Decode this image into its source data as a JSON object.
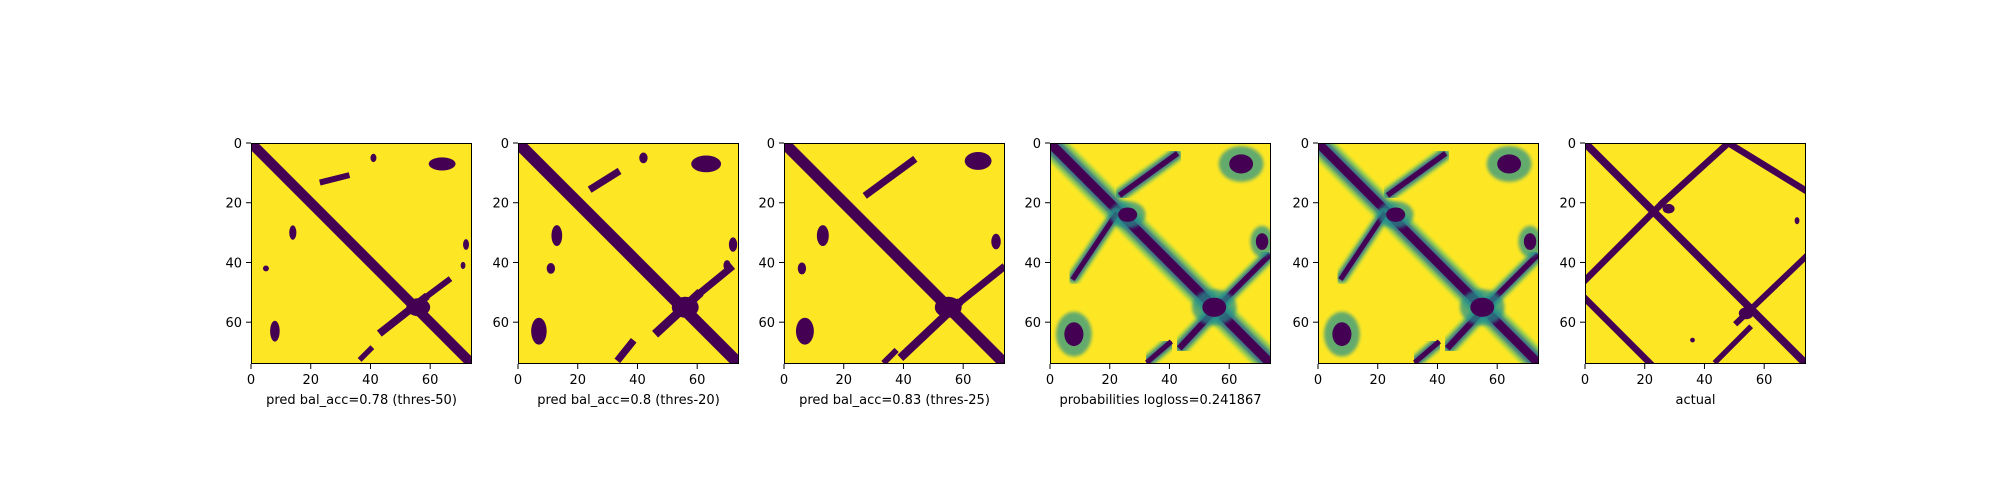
{
  "colors": {
    "low": "#440154",
    "high": "#fde725",
    "frame": "#000000"
  },
  "chart_data": [
    {
      "type": "heatmap",
      "xlabel": "pred bal_acc=0.78 (thres-50)",
      "xticks": [
        0,
        20,
        40,
        60
      ],
      "yticks": [
        0,
        20,
        40,
        60
      ],
      "xlim": [
        0,
        74
      ],
      "ylim": [
        74,
        0
      ],
      "grid": false,
      "legend": "none",
      "features": [
        {
          "kind": "band",
          "x1": 0,
          "y1": 0,
          "x2": 74,
          "y2": 74,
          "w": 3.4
        },
        {
          "kind": "band",
          "x1": 44,
          "y1": 63,
          "x2": 58,
          "y2": 52,
          "w": 2.6
        },
        {
          "kind": "band",
          "x1": 58,
          "y1": 52,
          "x2": 66,
          "y2": 46,
          "w": 2.0
        },
        {
          "kind": "band",
          "x1": 24,
          "y1": 13,
          "x2": 32,
          "y2": 11,
          "w": 2.0
        },
        {
          "kind": "band",
          "x1": 37,
          "y1": 72,
          "x2": 40,
          "y2": 69,
          "w": 1.8
        },
        {
          "kind": "blob",
          "x": 64,
          "y": 7,
          "rx": 4.5,
          "ry": 2.2
        },
        {
          "kind": "blob",
          "x": 56,
          "y": 55,
          "rx": 4,
          "ry": 3
        },
        {
          "kind": "blob",
          "x": 8,
          "y": 63,
          "rx": 1.6,
          "ry": 3.5
        },
        {
          "kind": "blob",
          "x": 14,
          "y": 30,
          "rx": 1.2,
          "ry": 2.4
        },
        {
          "kind": "blob",
          "x": 72,
          "y": 34,
          "rx": 1.0,
          "ry": 1.8
        },
        {
          "kind": "blob",
          "x": 71,
          "y": 41,
          "rx": 0.8,
          "ry": 1.2
        },
        {
          "kind": "blob",
          "x": 5,
          "y": 42,
          "rx": 1.0,
          "ry": 1.0
        },
        {
          "kind": "blob",
          "x": 41,
          "y": 5,
          "rx": 1.0,
          "ry": 1.4
        }
      ]
    },
    {
      "type": "heatmap",
      "xlabel": "pred bal_acc=0.8 (thres-20)",
      "xticks": [
        0,
        20,
        40,
        60
      ],
      "yticks": [
        0,
        20,
        40,
        60
      ],
      "xlim": [
        0,
        74
      ],
      "ylim": [
        74,
        0
      ],
      "grid": false,
      "legend": "none",
      "features": [
        {
          "kind": "band",
          "x1": 0,
          "y1": 0,
          "x2": 74,
          "y2": 74,
          "w": 4.0
        },
        {
          "kind": "band",
          "x1": 47,
          "y1": 63,
          "x2": 60,
          "y2": 51,
          "w": 3.0
        },
        {
          "kind": "band",
          "x1": 60,
          "y1": 51,
          "x2": 71,
          "y2": 42,
          "w": 2.4
        },
        {
          "kind": "band",
          "x1": 25,
          "y1": 15,
          "x2": 33,
          "y2": 10,
          "w": 2.4
        },
        {
          "kind": "band",
          "x1": 34,
          "y1": 72,
          "x2": 38,
          "y2": 67,
          "w": 2.4
        },
        {
          "kind": "blob",
          "x": 63,
          "y": 7,
          "rx": 5,
          "ry": 2.8
        },
        {
          "kind": "blob",
          "x": 56,
          "y": 55,
          "rx": 4.5,
          "ry": 3.5
        },
        {
          "kind": "blob",
          "x": 7,
          "y": 63,
          "rx": 2.6,
          "ry": 4.5
        },
        {
          "kind": "blob",
          "x": 13,
          "y": 31,
          "rx": 1.8,
          "ry": 3.5
        },
        {
          "kind": "blob",
          "x": 72,
          "y": 34,
          "rx": 1.4,
          "ry": 2.4
        },
        {
          "kind": "blob",
          "x": 70,
          "y": 41,
          "rx": 1.2,
          "ry": 1.8
        },
        {
          "kind": "blob",
          "x": 11,
          "y": 42,
          "rx": 1.4,
          "ry": 1.8
        },
        {
          "kind": "blob",
          "x": 42,
          "y": 5,
          "rx": 1.4,
          "ry": 1.8
        }
      ]
    },
    {
      "type": "heatmap",
      "xlabel": "pred bal_acc=0.83 (thres-25)",
      "xticks": [
        0,
        20,
        40,
        60
      ],
      "yticks": [
        0,
        20,
        40,
        60
      ],
      "xlim": [
        0,
        74
      ],
      "ylim": [
        74,
        0
      ],
      "grid": false,
      "legend": "none",
      "features": [
        {
          "kind": "band",
          "x1": 0,
          "y1": 0,
          "x2": 74,
          "y2": 74,
          "w": 3.8
        },
        {
          "kind": "band",
          "x1": 40,
          "y1": 71,
          "x2": 58,
          "y2": 54,
          "w": 2.8
        },
        {
          "kind": "band",
          "x1": 58,
          "y1": 54,
          "x2": 73,
          "y2": 42,
          "w": 2.4
        },
        {
          "kind": "band",
          "x1": 28,
          "y1": 17,
          "x2": 43,
          "y2": 6,
          "w": 2.4
        },
        {
          "kind": "band",
          "x1": 34,
          "y1": 73,
          "x2": 37,
          "y2": 70,
          "w": 2.0
        },
        {
          "kind": "blob",
          "x": 65,
          "y": 6,
          "rx": 4.5,
          "ry": 3.0
        },
        {
          "kind": "blob",
          "x": 55,
          "y": 55,
          "rx": 4.5,
          "ry": 3.5
        },
        {
          "kind": "blob",
          "x": 7,
          "y": 63,
          "rx": 3.0,
          "ry": 4.5
        },
        {
          "kind": "blob",
          "x": 13,
          "y": 31,
          "rx": 2.0,
          "ry": 3.5
        },
        {
          "kind": "blob",
          "x": 71,
          "y": 33,
          "rx": 1.6,
          "ry": 2.6
        },
        {
          "kind": "blob",
          "x": 6,
          "y": 42,
          "rx": 1.4,
          "ry": 2.0
        }
      ]
    },
    {
      "type": "heatmap",
      "xlabel": "probabilities logloss=0.241867",
      "xticks": [
        0,
        20,
        40,
        60
      ],
      "yticks": [
        0,
        20,
        40,
        60
      ],
      "xlim": [
        0,
        74
      ],
      "ylim": [
        74,
        0
      ],
      "grid": false,
      "legend": "none",
      "features": [
        {
          "kind": "band",
          "x1": 0,
          "y1": 0,
          "x2": 74,
          "y2": 74,
          "w": 4.5,
          "soft": true
        },
        {
          "kind": "band",
          "x1": 44,
          "y1": 68,
          "x2": 58,
          "y2": 53,
          "w": 3.0,
          "soft": true
        },
        {
          "kind": "band",
          "x1": 58,
          "y1": 53,
          "x2": 73,
          "y2": 38,
          "w": 2.6,
          "soft": true
        },
        {
          "kind": "band",
          "x1": 24,
          "y1": 17,
          "x2": 42,
          "y2": 4,
          "w": 2.6,
          "soft": true
        },
        {
          "kind": "band",
          "x1": 33,
          "y1": 73,
          "x2": 40,
          "y2": 67,
          "w": 2.4,
          "soft": true
        },
        {
          "kind": "band",
          "x1": 8,
          "y1": 45,
          "x2": 22,
          "y2": 24,
          "w": 2.4,
          "soft": true
        },
        {
          "kind": "blob",
          "x": 64,
          "y": 7,
          "rx": 5,
          "ry": 4,
          "soft": true
        },
        {
          "kind": "blob",
          "x": 55,
          "y": 55,
          "rx": 5,
          "ry": 4,
          "soft": true
        },
        {
          "kind": "blob",
          "x": 8,
          "y": 64,
          "rx": 4,
          "ry": 5,
          "soft": true
        },
        {
          "kind": "blob",
          "x": 71,
          "y": 33,
          "rx": 2.6,
          "ry": 3.5,
          "soft": true
        },
        {
          "kind": "blob",
          "x": 26,
          "y": 24,
          "rx": 4,
          "ry": 3,
          "soft": true
        }
      ]
    },
    {
      "type": "heatmap",
      "xlabel": "",
      "xticks": [
        0,
        20,
        40,
        60
      ],
      "yticks": [
        0,
        20,
        40,
        60
      ],
      "xlim": [
        0,
        74
      ],
      "ylim": [
        74,
        0
      ],
      "grid": false,
      "legend": "none",
      "features": [
        {
          "kind": "band",
          "x1": 0,
          "y1": 0,
          "x2": 74,
          "y2": 74,
          "w": 4.2,
          "soft": true
        },
        {
          "kind": "band",
          "x1": 44,
          "y1": 68,
          "x2": 58,
          "y2": 53,
          "w": 3.0,
          "soft": true
        },
        {
          "kind": "band",
          "x1": 58,
          "y1": 53,
          "x2": 73,
          "y2": 38,
          "w": 2.6,
          "soft": true
        },
        {
          "kind": "band",
          "x1": 24,
          "y1": 17,
          "x2": 42,
          "y2": 4,
          "w": 2.6,
          "soft": true
        },
        {
          "kind": "band",
          "x1": 33,
          "y1": 73,
          "x2": 40,
          "y2": 67,
          "w": 2.4,
          "soft": true
        },
        {
          "kind": "band",
          "x1": 8,
          "y1": 45,
          "x2": 22,
          "y2": 24,
          "w": 2.4,
          "soft": true
        },
        {
          "kind": "blob",
          "x": 64,
          "y": 7,
          "rx": 5,
          "ry": 4,
          "soft": true
        },
        {
          "kind": "blob",
          "x": 55,
          "y": 55,
          "rx": 5,
          "ry": 4,
          "soft": true
        },
        {
          "kind": "blob",
          "x": 8,
          "y": 64,
          "rx": 4,
          "ry": 5,
          "soft": true
        },
        {
          "kind": "blob",
          "x": 71,
          "y": 33,
          "rx": 2.6,
          "ry": 3.5,
          "soft": true
        },
        {
          "kind": "blob",
          "x": 26,
          "y": 24,
          "rx": 4,
          "ry": 3,
          "soft": true
        }
      ]
    },
    {
      "type": "heatmap",
      "xlabel": "actual",
      "xticks": [
        0,
        20,
        40,
        60
      ],
      "yticks": [
        0,
        20,
        40,
        60
      ],
      "xlim": [
        0,
        74
      ],
      "ylim": [
        74,
        0
      ],
      "grid": false,
      "legend": "none",
      "features": [
        {
          "kind": "band",
          "x1": 0,
          "y1": 0,
          "x2": 74,
          "y2": 74,
          "w": 2.6
        },
        {
          "kind": "band",
          "x1": 0,
          "y1": 46,
          "x2": 26,
          "y2": 20,
          "w": 2.2
        },
        {
          "kind": "band",
          "x1": 26,
          "y1": 20,
          "x2": 48,
          "y2": 0,
          "w": 2.2
        },
        {
          "kind": "band",
          "x1": 48,
          "y1": 0,
          "x2": 74,
          "y2": 16,
          "w": 2.2
        },
        {
          "kind": "band",
          "x1": 0,
          "y1": 52,
          "x2": 22,
          "y2": 74,
          "w": 2.2
        },
        {
          "kind": "band",
          "x1": 51,
          "y1": 60,
          "x2": 74,
          "y2": 38,
          "w": 2.0
        },
        {
          "kind": "band",
          "x1": 44,
          "y1": 73,
          "x2": 55,
          "y2": 62,
          "w": 1.8
        },
        {
          "kind": "blob",
          "x": 28,
          "y": 22,
          "rx": 2.0,
          "ry": 1.6
        },
        {
          "kind": "blob",
          "x": 54,
          "y": 57,
          "rx": 2.5,
          "ry": 2.0
        },
        {
          "kind": "blob",
          "x": 36,
          "y": 66,
          "rx": 0.8,
          "ry": 0.8
        },
        {
          "kind": "blob",
          "x": 71,
          "y": 26,
          "rx": 0.8,
          "ry": 1.2
        }
      ]
    }
  ]
}
